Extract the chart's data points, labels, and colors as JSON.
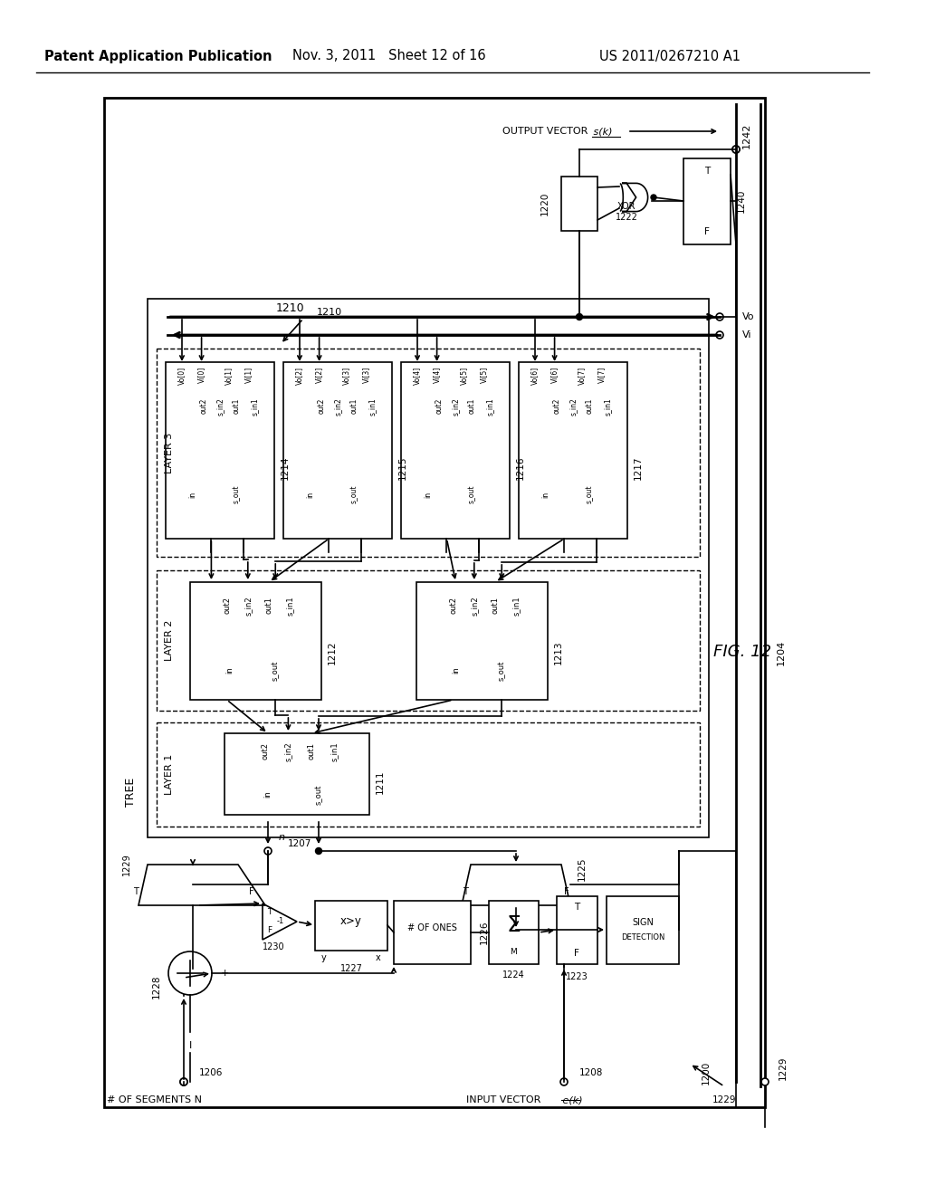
{
  "header_left": "Patent Application Publication",
  "header_mid": "Nov. 3, 2011   Sheet 12 of 16",
  "header_right": "US 2011/0267210 A1",
  "fig_label": "FIG. 12",
  "bg_color": "#ffffff",
  "line_color": "#000000"
}
